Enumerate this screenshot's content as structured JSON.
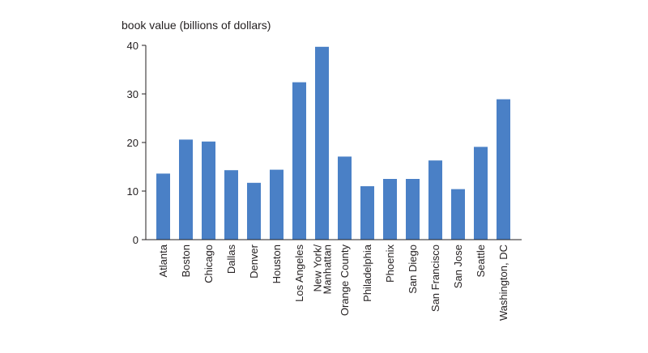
{
  "chart_data": {
    "type": "bar",
    "title": "",
    "ylabel": "book value (billions of dollars)",
    "xlabel": "",
    "ylim": [
      0,
      40
    ],
    "yticks": [
      0,
      10,
      20,
      30,
      40
    ],
    "grid": false,
    "categories": [
      "Atlanta",
      "Boston",
      "Chicago",
      "Dallas",
      "Denver",
      "Houston",
      "Los Angeles",
      "New York/ Manhattan",
      "Orange County",
      "Philadelphia",
      "Phoenix",
      "San Diego",
      "San Francisco",
      "San Jose",
      "Seattle",
      "Washington, DC"
    ],
    "values": [
      13.6,
      20.6,
      20.2,
      14.3,
      11.7,
      14.4,
      32.4,
      39.7,
      17.1,
      11.0,
      12.5,
      12.5,
      16.3,
      10.4,
      19.1,
      28.9
    ],
    "colors": {
      "bar": "#4a80c6",
      "axis": "#231f20"
    }
  }
}
